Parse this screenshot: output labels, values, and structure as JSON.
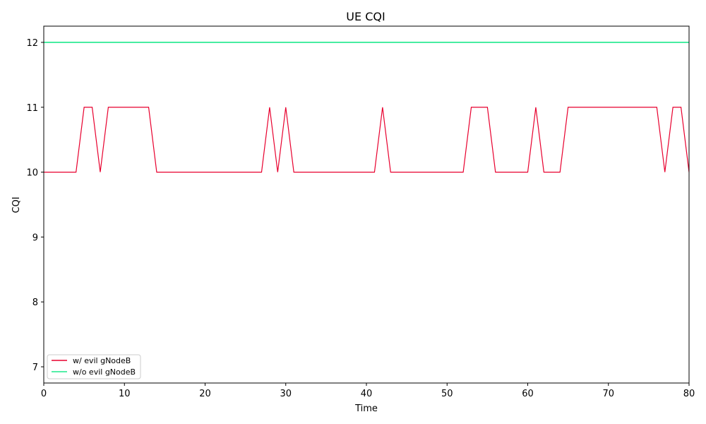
{
  "chart_data": {
    "type": "line",
    "title": "UE CQI",
    "xlabel": "Time",
    "ylabel": "CQI",
    "xlim": [
      0,
      80
    ],
    "ylim": [
      6.75,
      12.25
    ],
    "xticks": [
      0,
      10,
      20,
      30,
      40,
      50,
      60,
      70,
      80
    ],
    "yticks": [
      7,
      8,
      9,
      10,
      11,
      12
    ],
    "grid": false,
    "legend_position": "bottom-left",
    "x": [
      0,
      1,
      2,
      3,
      4,
      5,
      6,
      7,
      8,
      9,
      10,
      11,
      12,
      13,
      14,
      15,
      16,
      17,
      18,
      19,
      20,
      21,
      22,
      23,
      24,
      25,
      26,
      27,
      28,
      29,
      30,
      31,
      32,
      33,
      34,
      35,
      36,
      37,
      38,
      39,
      40,
      41,
      42,
      43,
      44,
      45,
      46,
      47,
      48,
      49,
      50,
      51,
      52,
      53,
      54,
      55,
      56,
      57,
      58,
      59,
      60,
      61,
      62,
      63,
      64,
      65,
      66,
      67,
      68,
      69,
      70,
      71,
      72,
      73,
      74,
      75,
      76,
      77,
      78,
      79,
      80
    ],
    "series": [
      {
        "name": "w/ evil gNodeB",
        "color": "#e8002e",
        "values": [
          10,
          10,
          10,
          10,
          10,
          11,
          11,
          10,
          11,
          11,
          11,
          11,
          11,
          11,
          10,
          10,
          10,
          10,
          10,
          10,
          10,
          10,
          10,
          10,
          10,
          10,
          10,
          10,
          11,
          10,
          11,
          10,
          10,
          10,
          10,
          10,
          10,
          10,
          10,
          10,
          10,
          10,
          11,
          10,
          10,
          10,
          10,
          10,
          10,
          10,
          10,
          10,
          10,
          11,
          11,
          11,
          10,
          10,
          10,
          10,
          10,
          11,
          10,
          10,
          10,
          11,
          11,
          11,
          11,
          11,
          11,
          11,
          11,
          11,
          11,
          11,
          11,
          10,
          11,
          11,
          10
        ]
      },
      {
        "name": "w/o evil gNodeB",
        "color": "#1de98b",
        "values": [
          12,
          12,
          12,
          12,
          12,
          12,
          12,
          12,
          12,
          12,
          12,
          12,
          12,
          12,
          12,
          12,
          12,
          12,
          12,
          12,
          12,
          12,
          12,
          12,
          12,
          12,
          12,
          12,
          12,
          12,
          12,
          12,
          12,
          12,
          12,
          12,
          12,
          12,
          12,
          12,
          12,
          12,
          12,
          12,
          12,
          12,
          12,
          12,
          12,
          12,
          12,
          12,
          12,
          12,
          12,
          12,
          12,
          12,
          12,
          12,
          12,
          12,
          12,
          12,
          12,
          12,
          12,
          12,
          12,
          12,
          12,
          12,
          12,
          12,
          12,
          12,
          12,
          12,
          12,
          12,
          12
        ]
      }
    ]
  }
}
